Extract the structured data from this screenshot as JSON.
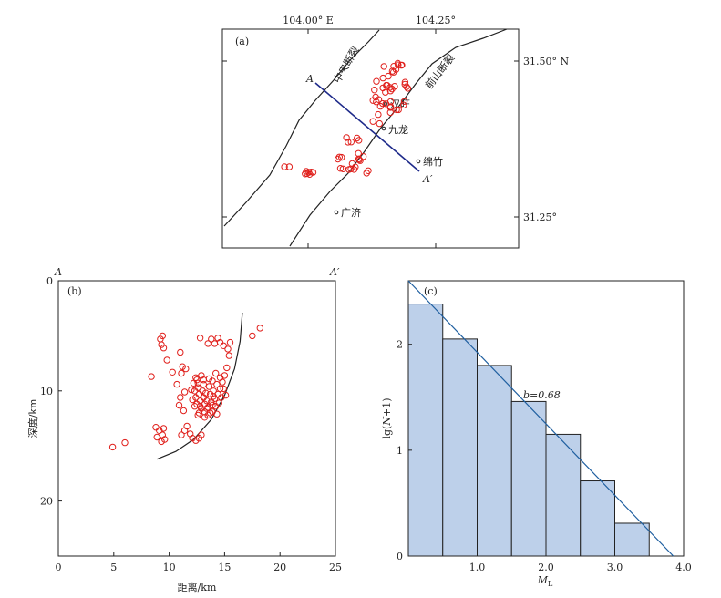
{
  "colors": {
    "quake": "#e0201c",
    "profile_line": "#1e2a8a",
    "fit_line": "#1f5fa0",
    "bar_fill": "#bdd0ea",
    "bar_edge": "#222222",
    "frame": "#222222"
  },
  "map": {
    "panel_label": "(a)",
    "lon_ticks": [
      "104.00° E",
      "104.25°"
    ],
    "lat_ticks": [
      "31.50° N",
      "31.25°"
    ],
    "fault_central": "中央断裂",
    "fault_front": "前山断裂",
    "profile_start": "A",
    "profile_end": "A′",
    "towns": [
      "汉旺",
      "九龙",
      "绵竹",
      "广济"
    ]
  },
  "chart_data": [
    {
      "type": "scatter",
      "panel_label": "(b)",
      "title": "",
      "xlabel": "距离/km",
      "ylabel": "深度/km",
      "xlim": [
        0,
        25
      ],
      "ylim": [
        25,
        0
      ],
      "xticks": [
        "0",
        "5",
        "10",
        "15",
        "20",
        "25"
      ],
      "yticks": [
        "0",
        "10",
        "20"
      ],
      "profile_start": "A",
      "profile_end": "A′",
      "points": [
        [
          4.9,
          15.1
        ],
        [
          6.0,
          14.7
        ],
        [
          8.4,
          8.7
        ],
        [
          8.8,
          13.3
        ],
        [
          8.9,
          14.2
        ],
        [
          9.1,
          13.6
        ],
        [
          9.3,
          14.6
        ],
        [
          9.4,
          14.0
        ],
        [
          9.5,
          13.4
        ],
        [
          9.6,
          14.4
        ],
        [
          9.2,
          5.3
        ],
        [
          9.4,
          5.0
        ],
        [
          9.3,
          5.8
        ],
        [
          9.5,
          6.1
        ],
        [
          9.8,
          7.2
        ],
        [
          10.3,
          8.3
        ],
        [
          10.7,
          9.4
        ],
        [
          11.0,
          6.5
        ],
        [
          11.2,
          7.8
        ],
        [
          11.5,
          8.0
        ],
        [
          11.1,
          8.4
        ],
        [
          11.4,
          10.1
        ],
        [
          11.0,
          10.6
        ],
        [
          10.9,
          11.3
        ],
        [
          11.3,
          11.8
        ],
        [
          11.6,
          13.2
        ],
        [
          11.4,
          13.6
        ],
        [
          11.1,
          14.0
        ],
        [
          11.9,
          13.9
        ],
        [
          12.1,
          14.3
        ],
        [
          12.4,
          14.5
        ],
        [
          12.7,
          14.3
        ],
        [
          12.9,
          14.0
        ],
        [
          12.2,
          9.3
        ],
        [
          12.3,
          10.0
        ],
        [
          12.4,
          10.6
        ],
        [
          12.5,
          11.2
        ],
        [
          12.6,
          9.7
        ],
        [
          12.7,
          10.3
        ],
        [
          12.8,
          10.9
        ],
        [
          12.9,
          11.6
        ],
        [
          13.0,
          10.0
        ],
        [
          13.1,
          10.6
        ],
        [
          13.2,
          11.2
        ],
        [
          12.8,
          5.2
        ],
        [
          12.5,
          9.0
        ],
        [
          12.7,
          12.0
        ],
        [
          13.1,
          9.4
        ],
        [
          13.3,
          10.2
        ],
        [
          13.4,
          10.9
        ],
        [
          13.5,
          11.5
        ],
        [
          13.6,
          9.6
        ],
        [
          13.7,
          10.3
        ],
        [
          13.8,
          11.0
        ],
        [
          13.9,
          9.1
        ],
        [
          14.0,
          10.0
        ],
        [
          14.1,
          10.7
        ],
        [
          14.2,
          11.4
        ],
        [
          14.3,
          9.4
        ],
        [
          14.4,
          10.3
        ],
        [
          14.5,
          11.1
        ],
        [
          14.6,
          9.8
        ],
        [
          14.7,
          10.6
        ],
        [
          14.8,
          9.2
        ],
        [
          15.0,
          8.6
        ],
        [
          15.2,
          7.9
        ],
        [
          14.3,
          12.1
        ],
        [
          13.9,
          11.9
        ],
        [
          13.5,
          12.2
        ],
        [
          13.2,
          11.9
        ],
        [
          12.4,
          8.8
        ],
        [
          13.5,
          5.7
        ],
        [
          13.8,
          5.3
        ],
        [
          14.1,
          5.7
        ],
        [
          14.4,
          5.2
        ],
        [
          14.6,
          5.6
        ],
        [
          14.9,
          5.9
        ],
        [
          15.3,
          6.2
        ],
        [
          15.4,
          6.8
        ],
        [
          15.5,
          5.6
        ],
        [
          14.2,
          8.4
        ],
        [
          13.6,
          8.9
        ],
        [
          12.9,
          8.6
        ],
        [
          13.9,
          11.3
        ],
        [
          13.2,
          12.4
        ],
        [
          12.6,
          12.2
        ],
        [
          12.3,
          11.4
        ],
        [
          12.1,
          10.8
        ],
        [
          12.0,
          9.9
        ],
        [
          14.9,
          9.8
        ],
        [
          15.1,
          10.4
        ],
        [
          18.2,
          4.3
        ],
        [
          17.5,
          5.0
        ],
        [
          13.4,
          11.6
        ],
        [
          14.6,
          8.8
        ],
        [
          13.1,
          9.0
        ],
        [
          12.8,
          11.4
        ],
        [
          14.0,
          10.5
        ],
        [
          13.7,
          12.0
        ],
        [
          12.6,
          9.3
        ]
      ],
      "boundary_curve": [
        [
          16.6,
          2.9
        ],
        [
          16.4,
          5.5
        ],
        [
          15.9,
          8.0
        ],
        [
          15.0,
          10.4
        ],
        [
          13.8,
          12.6
        ],
        [
          12.2,
          14.4
        ],
        [
          10.6,
          15.5
        ],
        [
          8.9,
          16.2
        ]
      ]
    },
    {
      "type": "bar",
      "panel_label": "(c)",
      "title": "",
      "xlabel": "M_L",
      "ylabel": "lg(N+1)",
      "xlim": [
        0,
        4.0
      ],
      "ylim": [
        0,
        2.6
      ],
      "xticks": [
        "1.0",
        "2.0",
        "3.0",
        "4.0"
      ],
      "yticks": [
        "0",
        "1",
        "2"
      ],
      "bin_edges": [
        0.0,
        0.5,
        1.0,
        1.5,
        2.0,
        2.5,
        3.0,
        3.5
      ],
      "values": [
        2.38,
        2.05,
        1.8,
        1.46,
        1.15,
        0.71,
        0.31
      ],
      "fit_line": {
        "x": [
          0.0,
          3.85
        ],
        "y": [
          2.6,
          0.0
        ]
      },
      "annotation": "b=0.68"
    }
  ]
}
